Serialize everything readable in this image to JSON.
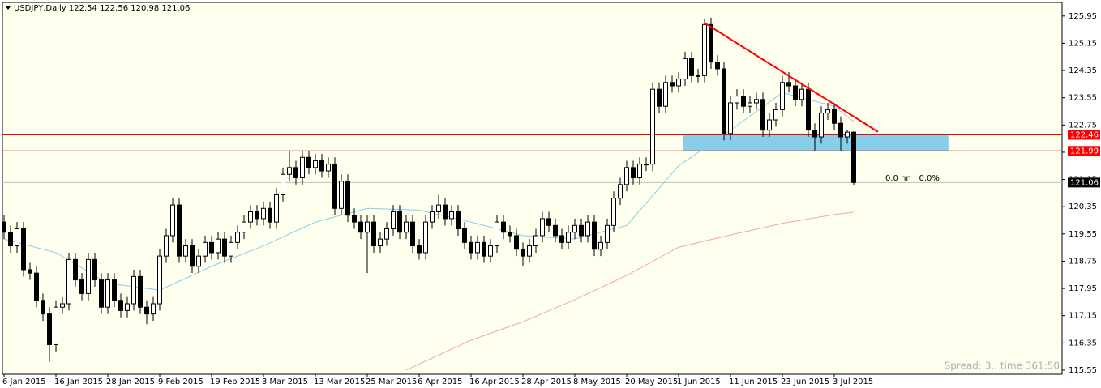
{
  "chart_data": {
    "type": "candlestick",
    "title": "USDJPY,Daily 122.54 122.56 120.98 121.06",
    "categories": [
      "6 Jan 2015",
      null,
      null,
      null,
      null,
      null,
      null,
      null,
      "16 Jan 2015",
      null,
      null,
      null,
      null,
      null,
      null,
      null,
      "28 Jan 2015",
      null,
      null,
      null,
      null,
      null,
      null,
      null,
      "9 Feb 2015",
      null,
      null,
      null,
      null,
      null,
      null,
      null,
      "19 Feb 2015",
      null,
      null,
      null,
      null,
      null,
      null,
      null,
      "3 Mar 2015",
      null,
      null,
      null,
      null,
      null,
      null,
      null,
      "13 Mar 2015",
      null,
      null,
      null,
      null,
      null,
      null,
      null,
      "25 Mar 2015",
      null,
      null,
      null,
      null,
      null,
      null,
      null,
      "6 Apr 2015",
      null,
      null,
      null,
      null,
      null,
      null,
      null,
      "16 Apr 2015",
      null,
      null,
      null,
      null,
      null,
      null,
      null,
      "28 Apr 2015",
      null,
      null,
      null,
      null,
      null,
      null,
      null,
      "8 May 2015",
      null,
      null,
      null,
      null,
      null,
      null,
      null,
      "20 May 2015",
      null,
      null,
      null,
      null,
      null,
      null,
      null,
      "1 Jun 2015",
      null,
      null,
      null,
      null,
      null,
      null,
      null,
      "11 Jun 2015",
      null,
      null,
      null,
      null,
      null,
      null,
      null,
      "23 Jun 2015",
      null,
      null,
      null,
      null,
      null,
      null,
      null,
      "3 Jul 2015",
      null,
      null,
      null
    ],
    "open": [
      119.9,
      119.6,
      119.2,
      119.7,
      118.5,
      118.4,
      117.6,
      117.2,
      116.3,
      117.4,
      117.5,
      118.8,
      118.2,
      117.8,
      118.8,
      118.2,
      117.4,
      118.2,
      117.6,
      117.3,
      117.5,
      118.3,
      117.4,
      117.2,
      117.5,
      118.9,
      119.5,
      120.4,
      118.9,
      119.2,
      118.6,
      118.9,
      119.3,
      119.0,
      119.4,
      118.9,
      119.3,
      119.6,
      119.9,
      120.2,
      120.0,
      120.3,
      119.9,
      120.7,
      121.3,
      121.5,
      121.2,
      121.8,
      121.5,
      121.7,
      121.4,
      121.6,
      120.3,
      121.1,
      120.1,
      119.9,
      119.6,
      119.9,
      119.2,
      119.4,
      119.7,
      120.2,
      119.6,
      119.9,
      119.2,
      119.0,
      119.9,
      120.2,
      120.4,
      120.0,
      120.2,
      119.7,
      119.3,
      119.0,
      119.3,
      118.9,
      119.2,
      119.9,
      119.6,
      119.5,
      119.1,
      118.9,
      119.2,
      119.5,
      120.0,
      119.8,
      119.5,
      119.3,
      119.6,
      119.8,
      119.5,
      119.9,
      119.1,
      119.3,
      119.8,
      120.6,
      121.0,
      121.5,
      121.2,
      121.6,
      121.6,
      123.8,
      123.3,
      124.0,
      123.9,
      124.1,
      124.7,
      124.2,
      124.2,
      125.7,
      124.6,
      124.4,
      122.5,
      123.4,
      123.6,
      123.3,
      123.4,
      123.5,
      122.6,
      122.9,
      123.2,
      124.0,
      123.9,
      123.5,
      123.8,
      122.6,
      122.4,
      123.1,
      123.2,
      122.8,
      122.4,
      122.54
    ],
    "high": [
      120.1,
      119.8,
      119.9,
      119.9,
      118.7,
      118.6,
      117.8,
      117.4,
      117.6,
      117.7,
      119.0,
      119.0,
      118.4,
      119.0,
      119.0,
      118.4,
      118.4,
      118.4,
      117.8,
      117.7,
      118.5,
      118.5,
      117.6,
      117.7,
      119.1,
      119.7,
      120.6,
      120.6,
      119.4,
      119.4,
      119.1,
      119.5,
      119.5,
      119.6,
      119.6,
      119.5,
      119.8,
      120.1,
      120.4,
      120.4,
      120.5,
      120.5,
      120.9,
      121.5,
      122.0,
      121.7,
      122.0,
      122.0,
      121.9,
      121.9,
      121.8,
      121.8,
      121.3,
      121.3,
      120.3,
      120.1,
      120.1,
      120.1,
      119.6,
      119.9,
      120.4,
      120.4,
      120.1,
      120.1,
      119.4,
      120.1,
      120.4,
      120.7,
      120.6,
      120.4,
      120.4,
      119.9,
      119.5,
      119.5,
      119.5,
      119.4,
      120.1,
      120.1,
      119.8,
      119.7,
      119.3,
      119.4,
      119.7,
      120.2,
      120.2,
      120.0,
      119.7,
      119.8,
      120.0,
      120.0,
      120.1,
      120.1,
      119.5,
      120.0,
      120.8,
      121.2,
      121.7,
      121.7,
      121.8,
      121.8,
      124.0,
      124.0,
      124.2,
      124.2,
      124.3,
      124.9,
      124.9,
      124.4,
      125.85,
      125.9,
      124.8,
      124.6,
      123.6,
      123.8,
      123.8,
      123.6,
      123.7,
      123.7,
      123.1,
      123.4,
      124.2,
      124.3,
      124.1,
      124.0,
      124.0,
      122.8,
      123.3,
      123.4,
      123.4,
      123.0,
      122.6,
      122.56
    ],
    "low": [
      119.4,
      119.0,
      119.0,
      118.3,
      118.2,
      117.4,
      117.0,
      115.8,
      116.1,
      117.2,
      117.3,
      118.0,
      117.6,
      117.6,
      118.0,
      117.2,
      117.2,
      117.4,
      117.1,
      117.1,
      117.3,
      117.2,
      116.9,
      117.0,
      117.3,
      118.7,
      119.3,
      118.7,
      118.7,
      118.4,
      118.4,
      118.7,
      118.8,
      118.8,
      118.7,
      118.7,
      119.1,
      119.4,
      119.7,
      119.8,
      119.8,
      119.7,
      119.7,
      120.5,
      121.1,
      121.0,
      121.0,
      121.3,
      121.3,
      121.2,
      121.2,
      120.1,
      120.1,
      119.9,
      119.7,
      119.4,
      118.4,
      119.0,
      119.0,
      119.2,
      119.5,
      119.4,
      119.4,
      119.0,
      118.8,
      118.8,
      119.7,
      120.0,
      119.8,
      119.8,
      119.5,
      119.1,
      118.8,
      118.8,
      118.7,
      118.7,
      119.0,
      119.4,
      119.3,
      118.9,
      118.6,
      118.7,
      119.0,
      119.3,
      119.6,
      119.3,
      119.1,
      119.1,
      119.4,
      119.3,
      119.3,
      118.9,
      118.9,
      119.1,
      119.6,
      120.4,
      120.8,
      121.0,
      121.0,
      121.4,
      121.4,
      123.1,
      123.1,
      123.7,
      123.7,
      123.9,
      124.0,
      124.0,
      124.0,
      124.4,
      124.2,
      122.3,
      122.3,
      123.2,
      123.1,
      123.1,
      123.2,
      122.4,
      122.4,
      122.7,
      123.0,
      123.7,
      123.3,
      123.3,
      122.4,
      122.0,
      122.2,
      122.9,
      122.6,
      122.0,
      122.2,
      120.98
    ],
    "close": [
      119.6,
      119.2,
      119.7,
      118.5,
      118.4,
      117.6,
      117.2,
      116.3,
      117.4,
      117.5,
      118.8,
      118.2,
      117.8,
      118.8,
      118.2,
      117.4,
      118.2,
      117.6,
      117.3,
      117.5,
      118.3,
      117.4,
      117.2,
      117.5,
      118.9,
      119.5,
      120.4,
      118.9,
      119.2,
      118.6,
      118.9,
      119.3,
      119.0,
      119.4,
      118.9,
      119.3,
      119.6,
      119.9,
      120.2,
      120.0,
      120.3,
      119.9,
      120.7,
      121.3,
      121.5,
      121.2,
      121.8,
      121.5,
      121.7,
      121.4,
      121.6,
      120.3,
      121.1,
      120.1,
      119.9,
      119.6,
      119.9,
      119.2,
      119.4,
      119.7,
      120.2,
      119.6,
      119.9,
      119.2,
      119.0,
      119.9,
      120.2,
      120.4,
      120.0,
      120.2,
      119.7,
      119.3,
      119.0,
      119.3,
      118.9,
      119.2,
      119.9,
      119.6,
      119.5,
      119.1,
      118.9,
      119.2,
      119.5,
      120.0,
      119.8,
      119.5,
      119.3,
      119.6,
      119.8,
      119.5,
      119.9,
      119.1,
      119.3,
      119.8,
      120.6,
      121.0,
      121.5,
      121.2,
      121.6,
      121.6,
      123.8,
      123.3,
      124.0,
      123.9,
      124.1,
      124.7,
      124.2,
      124.2,
      125.7,
      124.6,
      124.4,
      122.5,
      123.4,
      123.6,
      123.3,
      123.4,
      123.5,
      122.6,
      122.9,
      123.2,
      124.0,
      123.9,
      123.5,
      123.8,
      122.6,
      122.4,
      123.1,
      123.2,
      122.8,
      122.4,
      122.54,
      121.06
    ],
    "up_color": "#ffffff",
    "down_color": "#000000",
    "xlim": [
      -0.25,
      163.125
    ],
    "ylim": [
      115.43,
      126.35
    ],
    "yticks": [
      125.95,
      125.15,
      124.35,
      123.55,
      122.75,
      121.95,
      121.15,
      120.35,
      119.55,
      118.75,
      117.95,
      117.15,
      116.35,
      115.55
    ],
    "moving_averages": [
      {
        "color": "#87ceeb",
        "x": [
          0,
          8,
          16,
          24,
          32,
          40,
          48,
          56,
          64,
          72,
          80,
          88,
          96,
          104,
          112,
          120,
          128,
          131
        ],
        "values": [
          119.4,
          119.0,
          118.1,
          117.9,
          118.6,
          119.2,
          119.9,
          120.3,
          120.25,
          119.9,
          119.5,
          119.4,
          119.8,
          121.55,
          122.6,
          123.7,
          123.3,
          122.85
        ]
      },
      {
        "color": "#f4a6a6",
        "x": [
          62,
          72,
          80,
          88,
          96,
          104,
          112,
          120,
          128,
          131
        ],
        "values": [
          115.55,
          116.43,
          116.97,
          117.62,
          118.33,
          119.16,
          119.52,
          119.86,
          120.12,
          120.19
        ]
      }
    ],
    "levels": [
      {
        "value": 122.46,
        "color": "#ff0000"
      },
      {
        "value": 121.99,
        "color": "#ff0000"
      },
      {
        "value": 121.06,
        "color": "#c0c0c0",
        "tag_color": "#000000"
      }
    ],
    "zone": {
      "x": [
        104.75,
        145.6
      ],
      "y": [
        121.99,
        122.5
      ],
      "color": "#87ceeb"
    },
    "trendline": {
      "x": [
        107.9,
        134.75
      ],
      "y": [
        125.76,
        122.55
      ],
      "color": "#ff0000"
    },
    "annotation": "0.0 nn | 0.0%",
    "status": "Spread: 3.. time 361:50"
  }
}
